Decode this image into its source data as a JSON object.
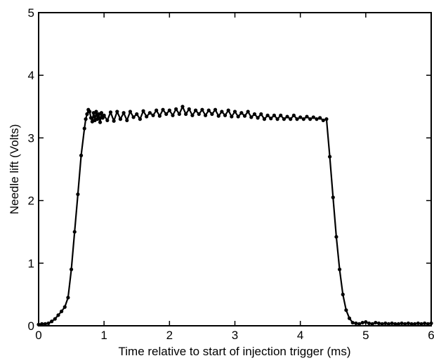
{
  "chart_data": {
    "type": "line",
    "title": "",
    "xlabel": "Time relative to start of injection trigger (ms)",
    "ylabel": "Needle lift (Volts)",
    "xlim": [
      0,
      6
    ],
    "ylim": [
      0,
      5
    ],
    "x_ticks": [
      0,
      1,
      2,
      3,
      4,
      5,
      6
    ],
    "y_ticks": [
      0,
      1,
      2,
      3,
      4,
      5
    ],
    "x_tick_labels": [
      "0",
      "1",
      "2",
      "3",
      "4",
      "5",
      "6"
    ],
    "y_tick_labels": [
      "0",
      "1",
      "2",
      "3",
      "4",
      "5"
    ],
    "grid": false,
    "legend": "none",
    "line_color": "#000000",
    "marker": "filled-circle",
    "series": [
      {
        "x": [
          0.0,
          0.05,
          0.1,
          0.15,
          0.2,
          0.25,
          0.3,
          0.35,
          0.4,
          0.45,
          0.5,
          0.55,
          0.6,
          0.65,
          0.7,
          0.72,
          0.74,
          0.76,
          0.78,
          0.8,
          0.82,
          0.84,
          0.86,
          0.88,
          0.9,
          0.92,
          0.94,
          0.96,
          0.98,
          1.0,
          1.05,
          1.1,
          1.15,
          1.2,
          1.25,
          1.3,
          1.35,
          1.4,
          1.45,
          1.5,
          1.55,
          1.6,
          1.65,
          1.7,
          1.75,
          1.8,
          1.85,
          1.9,
          1.95,
          2.0,
          2.05,
          2.1,
          2.15,
          2.2,
          2.25,
          2.3,
          2.35,
          2.4,
          2.45,
          2.5,
          2.55,
          2.6,
          2.65,
          2.7,
          2.75,
          2.8,
          2.85,
          2.9,
          2.95,
          3.0,
          3.05,
          3.1,
          3.15,
          3.2,
          3.25,
          3.3,
          3.35,
          3.4,
          3.45,
          3.5,
          3.55,
          3.6,
          3.65,
          3.7,
          3.75,
          3.8,
          3.85,
          3.9,
          3.95,
          4.0,
          4.05,
          4.1,
          4.15,
          4.2,
          4.25,
          4.3,
          4.35,
          4.4,
          4.45,
          4.5,
          4.55,
          4.6,
          4.65,
          4.7,
          4.75,
          4.8,
          4.85,
          4.9,
          4.95,
          5.0,
          5.05,
          5.1,
          5.15,
          5.2,
          5.25,
          5.3,
          5.35,
          5.4,
          5.45,
          5.5,
          5.55,
          5.6,
          5.65,
          5.7,
          5.75,
          5.8,
          5.85,
          5.9,
          5.95,
          6.0
        ],
        "y": [
          0.02,
          0.03,
          0.03,
          0.04,
          0.07,
          0.11,
          0.17,
          0.23,
          0.3,
          0.45,
          0.9,
          1.5,
          2.1,
          2.72,
          3.15,
          3.3,
          3.38,
          3.45,
          3.42,
          3.32,
          3.26,
          3.4,
          3.28,
          3.42,
          3.3,
          3.38,
          3.25,
          3.4,
          3.32,
          3.36,
          3.28,
          3.41,
          3.27,
          3.42,
          3.3,
          3.4,
          3.28,
          3.42,
          3.33,
          3.38,
          3.3,
          3.43,
          3.34,
          3.4,
          3.36,
          3.44,
          3.35,
          3.45,
          3.38,
          3.44,
          3.36,
          3.46,
          3.38,
          3.5,
          3.38,
          3.46,
          3.36,
          3.44,
          3.38,
          3.45,
          3.36,
          3.44,
          3.38,
          3.45,
          3.35,
          3.42,
          3.36,
          3.44,
          3.34,
          3.42,
          3.34,
          3.4,
          3.35,
          3.42,
          3.33,
          3.38,
          3.32,
          3.38,
          3.3,
          3.36,
          3.31,
          3.36,
          3.3,
          3.36,
          3.3,
          3.34,
          3.3,
          3.36,
          3.3,
          3.33,
          3.3,
          3.34,
          3.3,
          3.33,
          3.3,
          3.32,
          3.28,
          3.3,
          2.7,
          2.05,
          1.42,
          0.9,
          0.5,
          0.25,
          0.12,
          0.05,
          0.04,
          0.03,
          0.05,
          0.06,
          0.04,
          0.03,
          0.05,
          0.04,
          0.03,
          0.04,
          0.03,
          0.04,
          0.03,
          0.03,
          0.04,
          0.03,
          0.04,
          0.03,
          0.03,
          0.04,
          0.03,
          0.04,
          0.03,
          0.04
        ]
      }
    ]
  }
}
